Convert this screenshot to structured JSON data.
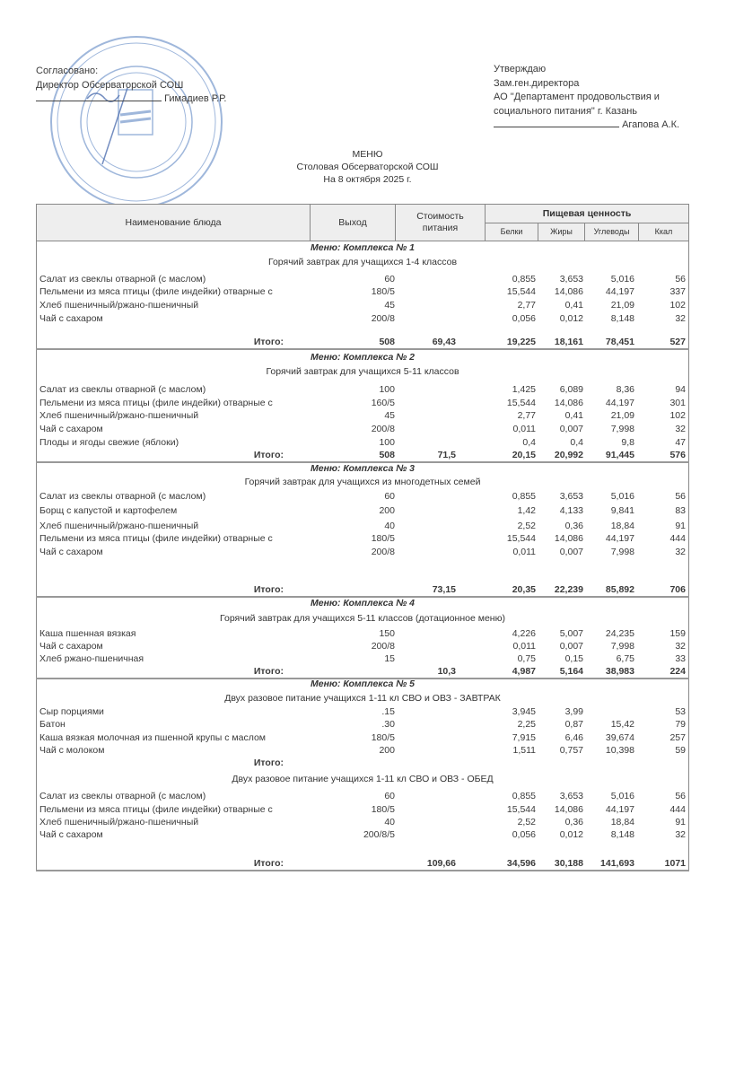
{
  "approval_left": {
    "line1": "Согласовано:",
    "line2": "Директор Обсерваторской СОШ",
    "signer": "Гимадиев Р.Р."
  },
  "approval_right": {
    "line1": "Утверждаю",
    "line2": "Зам.ген.директора",
    "line3": "АО \"Департамент продовольствия и",
    "line4": "социального питания\" г. Казань",
    "signer": "Агапова А.К."
  },
  "stamp_color": "#7f9fd0",
  "title": {
    "line1": "МЕНЮ",
    "line2": "Столовая Обсерваторской СОШ",
    "line3": "На 8 октября 2025 г."
  },
  "table_header": {
    "name": "Наименование блюда",
    "output": "Выход",
    "cost": "Стоимость питания",
    "nutrition": "Пищевая ценность",
    "proteins": "Белки",
    "fats": "Жиры",
    "carbs": "Углеводы",
    "kcal": "Ккал"
  },
  "sections": [
    {
      "title": "Меню: Комплекса № 1",
      "subtitle": "Горячий завтрак для учащихся 1-4 классов",
      "rows": [
        [
          "Салат из свеклы отварной (с маслом)",
          "60",
          "",
          "0,855",
          "3,653",
          "5,016",
          "56"
        ],
        [
          "Пельмени из мяса птицы (филе индейки) отварные с",
          "180/5",
          "",
          "15,544",
          "14,086",
          "44,197",
          "337"
        ],
        [
          "Хлеб пшеничный/ржано-пшеничный",
          "45",
          "",
          "2,77",
          "0,41",
          "21,09",
          "102"
        ],
        [
          "Чай с сахаром",
          "200/8",
          "",
          "0,056",
          "0,012",
          "8,148",
          "32"
        ]
      ],
      "total": [
        "Итого:",
        "508",
        "69,43",
        "19,225",
        "18,161",
        "78,451",
        "527"
      ]
    },
    {
      "title": "Меню: Комплекса № 2",
      "subtitle": "Горячий завтрак для учащихся 5-11 классов",
      "rows": [
        [
          "Салат из свеклы отварной (с маслом)",
          "100",
          "",
          "1,425",
          "6,089",
          "8,36",
          "94"
        ],
        [
          "Пельмени из мяса птицы (филе индейки) отварные с",
          "160/5",
          "",
          "15,544",
          "14,086",
          "44,197",
          "301"
        ],
        [
          "Хлеб пшеничный/ржано-пшеничный",
          "45",
          "",
          "2,77",
          "0,41",
          "21,09",
          "102"
        ],
        [
          "Чай с сахаром",
          "200/8",
          "",
          "0,011",
          "0,007",
          "7,998",
          "32"
        ],
        [
          "Плоды и ягоды свежие (яблоки)",
          "100",
          "",
          "0,4",
          "0,4",
          "9,8",
          "47"
        ]
      ],
      "total": [
        "Итого:",
        "508",
        "71,5",
        "20,15",
        "20,992",
        "91,445",
        "576"
      ]
    },
    {
      "title": "Меню: Комплекса № 3",
      "subtitle": "Горячий завтрак для учащихся из многодетных семей",
      "rows": [
        [
          "Салат из свеклы отварной (с маслом)",
          "60",
          "",
          "0,855",
          "3,653",
          "5,016",
          "56"
        ],
        [
          "Борщ с капустой и картофелем",
          "200",
          "",
          "1,42",
          "4,133",
          "9,841",
          "83"
        ],
        [
          "Хлеб пшеничный/ржано-пшеничный",
          "40",
          "",
          "2,52",
          "0,36",
          "18,84",
          "91"
        ],
        [
          "Пельмени из мяса птицы (филе индейки) отварные с",
          "180/5",
          "",
          "15,544",
          "14,086",
          "44,197",
          "444"
        ],
        [
          "Чай с сахаром",
          "200/8",
          "",
          "0,011",
          "0,007",
          "7,998",
          "32"
        ]
      ],
      "total": [
        "Итого:",
        "",
        "73,15",
        "20,35",
        "22,239",
        "85,892",
        "706"
      ]
    },
    {
      "title": "Меню: Комплекса № 4",
      "subtitle": "Горячий завтрак для учащихся 5-11 классов (дотационное меню)",
      "rows": [
        [
          "Каша пшенная вязкая",
          "150",
          "",
          "4,226",
          "5,007",
          "24,235",
          "159"
        ],
        [
          "Чай с сахаром",
          "200/8",
          "",
          "0,011",
          "0,007",
          "7,998",
          "32"
        ],
        [
          "Хлеб ржано-пшеничная",
          "15",
          "",
          "0,75",
          "0,15",
          "6,75",
          "33"
        ]
      ],
      "total": [
        "Итого:",
        "",
        "10,3",
        "4,987",
        "5,164",
        "38,983",
        "224"
      ]
    },
    {
      "title": "Меню: Комплекса № 5",
      "subtitle": "Двух разовое питание учащихся 1-11 кл СВО и ОВЗ - ЗАВТРАК",
      "rows": [
        [
          "Сыр порциями",
          ".15",
          "",
          "3,945",
          "3,99",
          "",
          "53"
        ],
        [
          "Батон",
          ".30",
          "",
          "2,25",
          "0,87",
          "15,42",
          "79"
        ],
        [
          "Каша вязкая молочная из пшенной крупы с маслом",
          "180/5",
          "",
          "7,915",
          "6,46",
          "39,674",
          "257"
        ],
        [
          "Чай с молоком",
          "200",
          "",
          "1,511",
          "0,757",
          "10,398",
          "59"
        ]
      ],
      "mid_total": "Итого:",
      "subtitle2": "Двух разовое питание учащихся 1-11 кл СВО и ОВЗ - ОБЕД",
      "rows2": [
        [
          "Салат из свеклы отварной (с маслом)",
          "60",
          "",
          "0,855",
          "3,653",
          "5,016",
          "56"
        ],
        [
          "Пельмени из мяса птицы (филе индейки) отварные с",
          "180/5",
          "",
          "15,544",
          "14,086",
          "44,197",
          "444"
        ],
        [
          "Хлеб пшеничный/ржано-пшеничный",
          "40",
          "",
          "2,52",
          "0,36",
          "18,84",
          "91"
        ],
        [
          "Чай с сахаром",
          "200/8/5",
          "",
          "0,056",
          "0,012",
          "8,148",
          "32"
        ]
      ],
      "total": [
        "Итого:",
        "",
        "109,66",
        "34,596",
        "30,188",
        "141,693",
        "1071"
      ]
    }
  ]
}
